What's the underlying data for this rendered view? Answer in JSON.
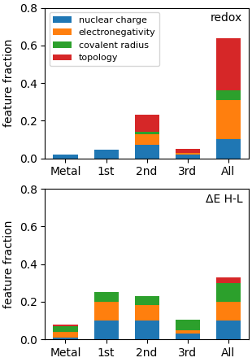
{
  "chart_data": [
    {
      "type": "bar",
      "stacked": true,
      "categories": [
        "Metal",
        "1st",
        "2nd",
        "3rd",
        "All"
      ],
      "series": [
        {
          "name": "nuclear charge",
          "values": [
            0.02,
            0.048,
            0.07,
            0.02,
            0.1
          ]
        },
        {
          "name": "electronegativity",
          "values": [
            0.0,
            0.0,
            0.06,
            0.01,
            0.21
          ]
        },
        {
          "name": "covalent radius",
          "values": [
            0.0,
            0.0,
            0.012,
            0.0,
            0.05
          ]
        },
        {
          "name": "topology",
          "values": [
            0.0,
            0.0,
            0.09,
            0.02,
            0.28
          ]
        }
      ],
      "ylim": [
        0.0,
        0.8
      ],
      "yticks": [
        0.0,
        0.2,
        0.4,
        0.6,
        0.8
      ],
      "ylabel": "feature fraction",
      "annotations": [
        "redox"
      ],
      "legend": "upper left"
    },
    {
      "type": "bar",
      "stacked": true,
      "categories": [
        "Metal",
        "1st",
        "2nd",
        "3rd",
        "All"
      ],
      "series": [
        {
          "name": "nuclear charge",
          "values": [
            0.01,
            0.1,
            0.1,
            0.03,
            0.1
          ]
        },
        {
          "name": "electronegativity",
          "values": [
            0.03,
            0.1,
            0.08,
            0.02,
            0.1
          ]
        },
        {
          "name": "covalent radius",
          "values": [
            0.03,
            0.05,
            0.05,
            0.055,
            0.1
          ]
        },
        {
          "name": "topology",
          "values": [
            0.01,
            0.0,
            0.0,
            0.0,
            0.03
          ]
        }
      ],
      "ylim": [
        0.0,
        0.8
      ],
      "yticks": [
        0.0,
        0.2,
        0.4,
        0.6,
        0.8
      ],
      "ylabel": "feature fraction",
      "annotations": [
        "ΔE H-L"
      ]
    }
  ]
}
